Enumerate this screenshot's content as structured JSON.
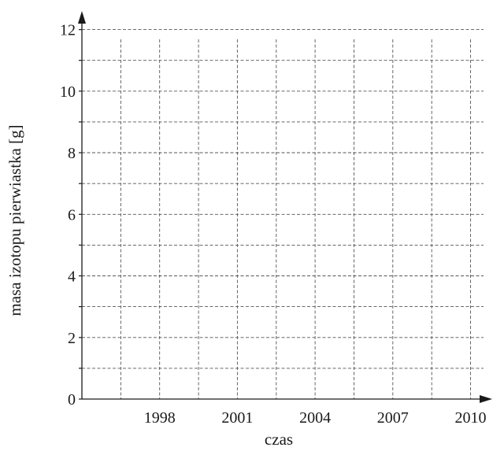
{
  "chart_data": {
    "type": "line",
    "xlabel": "czas",
    "ylabel": "masa izotopu pierwiastka [g]",
    "x_ticks": [
      "1998",
      "2001",
      "2004",
      "2007",
      "2010"
    ],
    "x_tick_values": [
      1998,
      2001,
      2004,
      2007,
      2010
    ],
    "xlim": [
      1995,
      2010.5
    ],
    "y_ticks": [
      "0",
      "2",
      "4",
      "6",
      "8",
      "10",
      "12"
    ],
    "y_tick_values": [
      0,
      2,
      4,
      6,
      8,
      10,
      12
    ],
    "ylim": [
      0,
      12.5
    ],
    "grid": true,
    "x_grid_step": 1.5,
    "y_grid_step": 1,
    "series": []
  }
}
